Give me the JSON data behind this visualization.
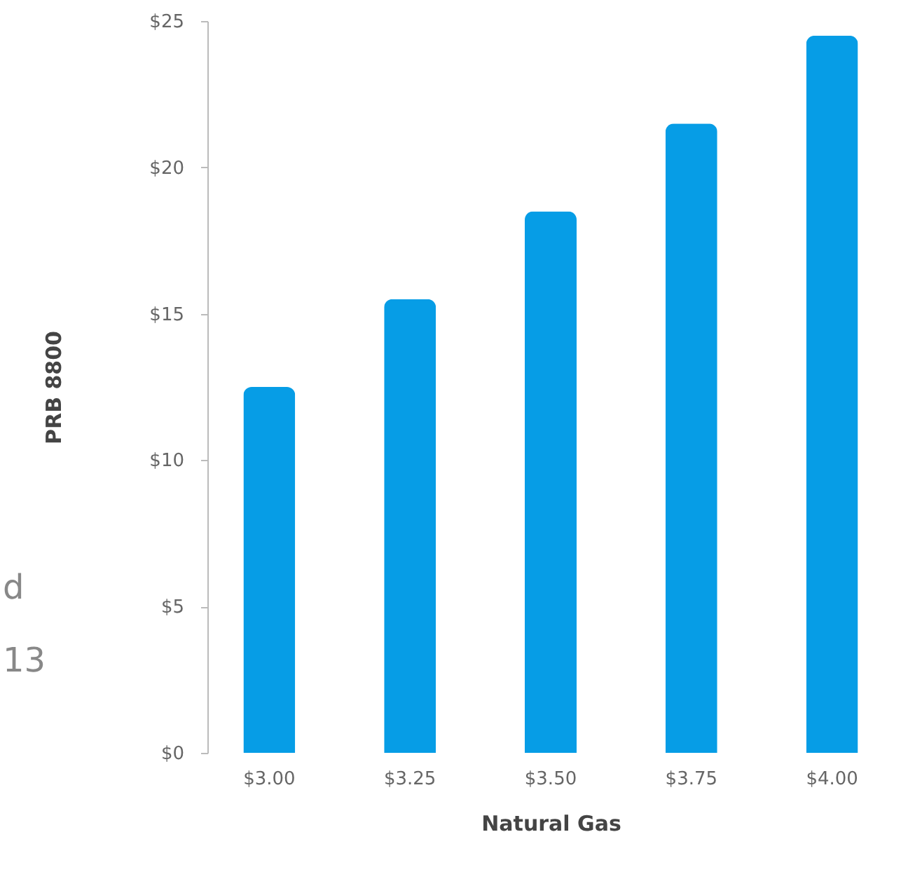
{
  "chart_data": {
    "type": "bar",
    "xlabel": "Natural Gas",
    "ylabel": "PRB 8800",
    "categories": [
      "$3.00",
      "$3.25",
      "$3.50",
      "$3.75",
      "$4.00"
    ],
    "values": [
      12.5,
      15.5,
      18.5,
      21.5,
      24.5
    ],
    "color": "#069de6",
    "ylim": [
      0,
      25
    ],
    "yticks": [
      {
        "value": 0,
        "label": "$0"
      },
      {
        "value": 5,
        "label": "$5"
      },
      {
        "value": 10,
        "label": "$10"
      },
      {
        "value": 15,
        "label": "$15"
      },
      {
        "value": 20,
        "label": "$20"
      },
      {
        "value": 25,
        "label": "$25"
      }
    ],
    "grid": false,
    "annotations": [
      "d",
      "13"
    ]
  }
}
